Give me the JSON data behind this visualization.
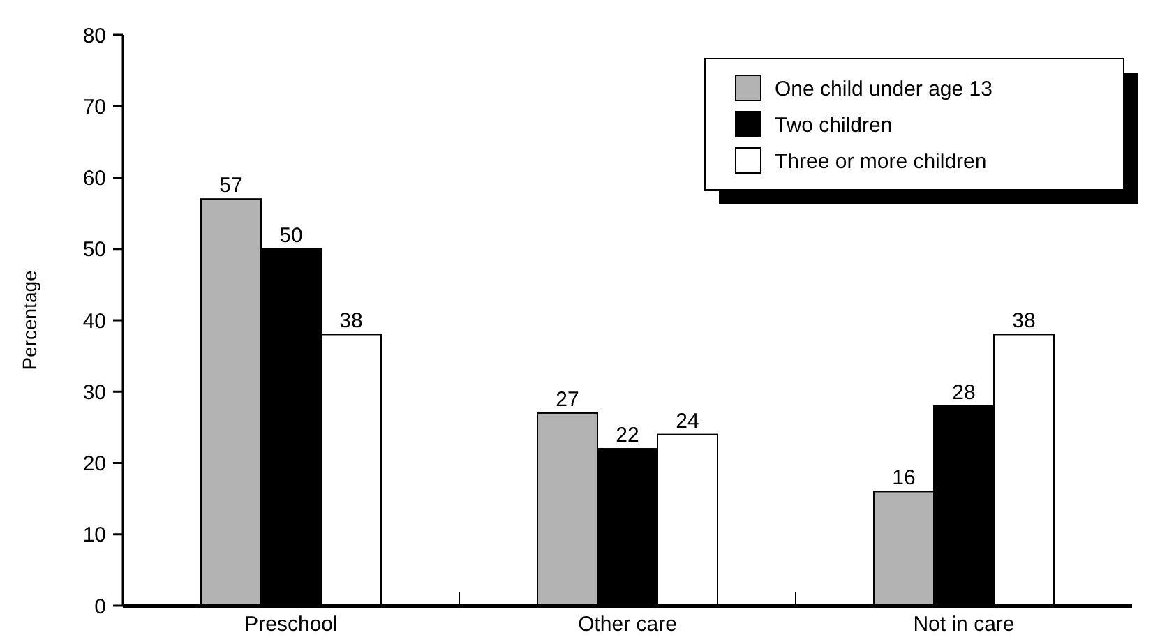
{
  "chart_data": {
    "type": "bar",
    "ylabel": "Percentage",
    "categories": [
      "Preschool",
      "Other care",
      "Not in care"
    ],
    "series": [
      {
        "name": "One child under age 13",
        "color": "#b3b3b3",
        "values": [
          57,
          27,
          16
        ]
      },
      {
        "name": "Two children",
        "color": "#000000",
        "values": [
          50,
          22,
          28
        ]
      },
      {
        "name": "Three or more children",
        "color": "#ffffff",
        "values": [
          38,
          24,
          38
        ]
      }
    ],
    "ylim": [
      0,
      80
    ],
    "yticks": [
      0,
      10,
      20,
      30,
      40,
      50,
      60,
      70,
      80
    ],
    "data_labels": true,
    "legend": "top right",
    "grid": false
  }
}
